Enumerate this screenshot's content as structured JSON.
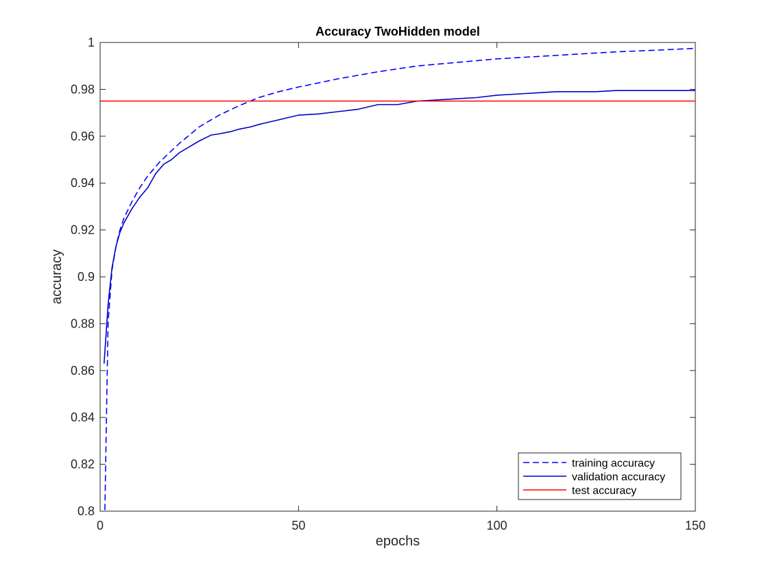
{
  "chart_data": {
    "type": "line",
    "title": "Accuracy TwoHidden model",
    "xlabel": "epochs",
    "ylabel": "accuracy",
    "xlim": [
      0,
      150
    ],
    "ylim": [
      0.8,
      1
    ],
    "xticks": [
      0,
      50,
      100,
      150
    ],
    "yticks": [
      0.8,
      0.82,
      0.84,
      0.86,
      0.88,
      0.9,
      0.92,
      0.94,
      0.96,
      0.98,
      1
    ],
    "ytick_labels": [
      "0.8",
      "0.82",
      "0.84",
      "0.86",
      "0.88",
      "0.9",
      "0.92",
      "0.94",
      "0.96",
      "0.98",
      "1"
    ],
    "grid": false,
    "legend_position": "bottom-right",
    "series": [
      {
        "name": "training accuracy",
        "color": "#0000ff",
        "line_style": "dashed",
        "x": [
          1,
          2,
          3,
          4,
          5,
          6,
          8,
          10,
          12,
          15,
          20,
          25,
          30,
          35,
          40,
          45,
          50,
          60,
          70,
          80,
          90,
          100,
          110,
          120,
          130,
          140,
          150
        ],
        "y": [
          0.78,
          0.88,
          0.903,
          0.913,
          0.92,
          0.925,
          0.932,
          0.938,
          0.943,
          0.949,
          0.957,
          0.964,
          0.969,
          0.973,
          0.9765,
          0.979,
          0.981,
          0.9845,
          0.9875,
          0.99,
          0.9915,
          0.993,
          0.994,
          0.995,
          0.996,
          0.9967,
          0.9975
        ]
      },
      {
        "name": "validation accuracy",
        "color": "#0000c8",
        "line_style": "solid",
        "x": [
          1,
          2,
          3,
          4,
          5,
          6,
          8,
          10,
          12,
          14,
          16,
          18,
          20,
          22,
          25,
          28,
          30,
          33,
          35,
          38,
          40,
          45,
          50,
          55,
          60,
          65,
          70,
          75,
          80,
          85,
          90,
          95,
          100,
          105,
          110,
          115,
          120,
          125,
          130,
          135,
          140,
          145,
          150
        ],
        "y": [
          0.863,
          0.888,
          0.904,
          0.913,
          0.919,
          0.923,
          0.929,
          0.934,
          0.938,
          0.944,
          0.948,
          0.95,
          0.953,
          0.955,
          0.958,
          0.9605,
          0.961,
          0.962,
          0.963,
          0.964,
          0.965,
          0.967,
          0.969,
          0.9695,
          0.9705,
          0.9715,
          0.9735,
          0.9735,
          0.975,
          0.9755,
          0.976,
          0.9765,
          0.9775,
          0.978,
          0.9785,
          0.979,
          0.979,
          0.979,
          0.9795,
          0.9795,
          0.9795,
          0.9795,
          0.9795
        ]
      },
      {
        "name": "test accuracy",
        "color": "#ff0000",
        "line_style": "solid",
        "x": [
          0,
          150
        ],
        "y": [
          0.975,
          0.975
        ]
      }
    ]
  }
}
